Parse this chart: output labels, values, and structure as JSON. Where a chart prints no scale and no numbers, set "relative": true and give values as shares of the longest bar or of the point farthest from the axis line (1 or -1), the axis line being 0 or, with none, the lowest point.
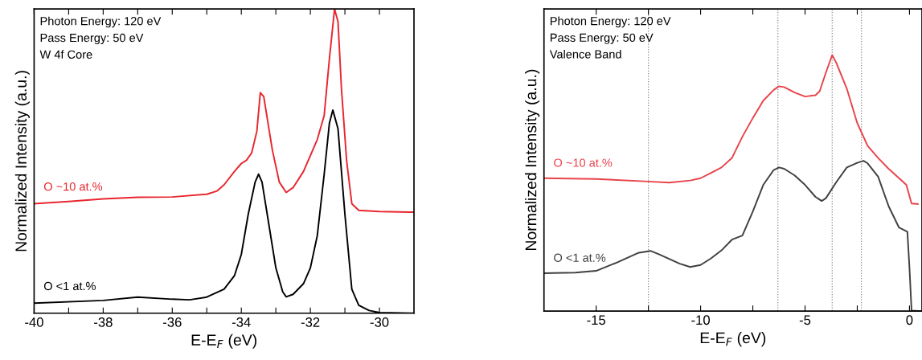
{
  "chart_data": [
    {
      "type": "line",
      "relative": true,
      "xlabel": "E-E$_{F}$ (eV)",
      "ylabel": "Normalized Intensity (a.u.)",
      "annotations": [
        "Photon Energy: 120 eV",
        "Pass Energy: 50 eV",
        "W 4f Core"
      ],
      "xlim": [
        -40,
        -29
      ],
      "xticks": [
        -40,
        {
          "value": -39,
          "label": null
        },
        -38,
        {
          "value": -37,
          "label": null
        },
        -36,
        {
          "value": -35,
          "label": null
        },
        -34,
        {
          "value": -33,
          "label": null
        },
        -32,
        {
          "value": -31,
          "label": null
        },
        -30
      ],
      "legend": false,
      "marker": "none",
      "line_style": "solid",
      "grid": false,
      "series": [
        {
          "name": "O ~10 at.%",
          "color": "#e8262e",
          "x": [
            -40,
            -39,
            -38,
            -37,
            -36,
            -35,
            -34.7,
            -34.5,
            -34.2,
            -34.0,
            -33.85,
            -33.7,
            -33.55,
            -33.45,
            -33.35,
            -33.2,
            -33.1,
            -32.9,
            -32.7,
            -32.5,
            -32.2,
            -32.0,
            -31.8,
            -31.6,
            -31.45,
            -31.3,
            -31.2,
            -31.1,
            -30.95,
            -30.8,
            -30.6,
            -30,
            -29
          ],
          "values": [
            0.36,
            0.367,
            0.376,
            0.381,
            0.382,
            0.391,
            0.402,
            0.422,
            0.466,
            0.492,
            0.503,
            0.527,
            0.598,
            0.725,
            0.712,
            0.606,
            0.536,
            0.431,
            0.397,
            0.413,
            0.466,
            0.518,
            0.571,
            0.65,
            0.835,
            1.0,
            0.958,
            0.738,
            0.501,
            0.36,
            0.338,
            0.334,
            0.332
          ]
        },
        {
          "name": "O <1 at.%",
          "color": "#000000",
          "x": [
            -40,
            -38,
            -37,
            -36,
            -35.5,
            -35,
            -34.5,
            -34.2,
            -34.0,
            -33.8,
            -33.6,
            -33.5,
            -33.4,
            -33.2,
            -33.0,
            -32.8,
            -32.7,
            -32.5,
            -32.2,
            -32.0,
            -31.8,
            -31.6,
            -31.45,
            -31.35,
            -31.2,
            -31.0,
            -30.8,
            -30.6,
            -30.3,
            -30.0,
            -29.0
          ],
          "values": [
            0.033,
            0.042,
            0.053,
            0.046,
            0.044,
            0.053,
            0.079,
            0.123,
            0.193,
            0.325,
            0.431,
            0.457,
            0.431,
            0.29,
            0.149,
            0.07,
            0.054,
            0.062,
            0.097,
            0.149,
            0.255,
            0.457,
            0.624,
            0.668,
            0.606,
            0.325,
            0.079,
            0.026,
            0.009,
            0.002,
            0
          ]
        }
      ]
    },
    {
      "type": "line",
      "relative": true,
      "xlabel": "E-E$_{F}$ (eV)",
      "ylabel": "Normalized Intensity (a.u.)",
      "annotations": [
        "Photon Energy: 120 eV",
        "Pass Energy: 50 eV",
        "Valence Band"
      ],
      "xlim": [
        -17.5,
        0.6
      ],
      "xticks": [
        -15,
        {
          "value": -12.5,
          "label": null
        },
        -10,
        {
          "value": -7.5,
          "label": null
        },
        -5,
        {
          "value": -2.5,
          "label": null
        },
        0
      ],
      "legend": false,
      "marker": "none",
      "line_style": "solid",
      "grid": false,
      "ref_lines": [
        {
          "axis": "x",
          "value": -12.5,
          "color": "#888888",
          "line_style": "dotted"
        },
        {
          "axis": "x",
          "value": -6.3,
          "color": "#888888",
          "line_style": "dotted"
        },
        {
          "axis": "x",
          "value": -3.7,
          "color": "#888888",
          "line_style": "dotted"
        },
        {
          "axis": "x",
          "value": -2.3,
          "color": "#888888",
          "line_style": "dotted"
        }
      ],
      "series": [
        {
          "name": "O ~10 at.%",
          "color": "#e8434a",
          "x": [
            -17.5,
            -15,
            -12.5,
            -11.5,
            -10.5,
            -10,
            -9.5,
            -9,
            -8.5,
            -8,
            -7.5,
            -7,
            -6.5,
            -6.25,
            -6,
            -5.5,
            -5,
            -4.5,
            -4.3,
            -4,
            -3.7,
            -3.5,
            -3,
            -2.5,
            -2,
            -1.5,
            -1,
            -0.5,
            -0.15,
            0.1,
            0.4
          ],
          "values": [
            0.519,
            0.516,
            0.506,
            0.502,
            0.51,
            0.519,
            0.54,
            0.561,
            0.598,
            0.681,
            0.754,
            0.822,
            0.864,
            0.878,
            0.875,
            0.854,
            0.838,
            0.843,
            0.859,
            0.932,
            1.0,
            0.969,
            0.869,
            0.734,
            0.645,
            0.598,
            0.556,
            0.519,
            0.493,
            0.42,
            0.418
          ]
        },
        {
          "name": "O <1 at.%",
          "color": "#404040",
          "x": [
            -17.5,
            -16,
            -15,
            -14,
            -13,
            -12.4,
            -12,
            -11,
            -10.5,
            -10,
            -9.5,
            -9,
            -8.5,
            -8,
            -7.5,
            -7,
            -6.5,
            -6.25,
            -6,
            -5.5,
            -5,
            -4.5,
            -4.2,
            -4,
            -3.5,
            -3,
            -2.5,
            -2.2,
            -2,
            -1.5,
            -1,
            -0.5,
            -0.1,
            0,
            0.1,
            0.55
          ],
          "values": [
            0.148,
            0.15,
            0.157,
            0.19,
            0.227,
            0.235,
            0.222,
            0.185,
            0.172,
            0.18,
            0.206,
            0.237,
            0.279,
            0.295,
            0.389,
            0.493,
            0.551,
            0.561,
            0.556,
            0.53,
            0.493,
            0.446,
            0.43,
            0.441,
            0.504,
            0.561,
            0.579,
            0.587,
            0.577,
            0.525,
            0.41,
            0.326,
            0.31,
            0.169,
            0.002,
            0
          ]
        }
      ]
    }
  ]
}
